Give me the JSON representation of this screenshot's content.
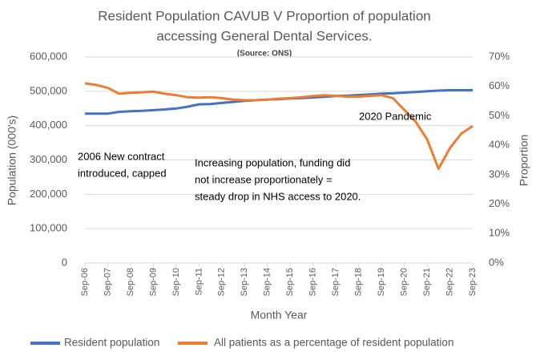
{
  "chart_data": {
    "type": "line",
    "title": [
      "Resident Population CAVUB V Proportion of population",
      "accessing General Dental Services."
    ],
    "subtitle": "(Source: ONS)",
    "x_label": "Month Year",
    "y_label": "Population (000's)",
    "y2_label": "Proportion",
    "annotations": [
      [
        "2006 New contract",
        "introduced, capped"
      ],
      [
        "Increasing population, funding did",
        "not increase proportionately  =",
        "steady drop in NHS access to 2020."
      ],
      [
        "2020  Pandemic"
      ]
    ],
    "categories": [
      "Sep-06",
      null,
      "Sep-07",
      null,
      "Sep-08",
      null,
      "Sep-09",
      null,
      "Sep-10",
      null,
      "Sep-11",
      null,
      "Sep-12",
      null,
      "Sep-13",
      null,
      "Sep-14",
      null,
      "Sep-15",
      null,
      "Sep-16",
      null,
      "Sep-17",
      null,
      "Sep-18",
      null,
      "Sep-19",
      null,
      "Sep-20",
      null,
      "Sep-21",
      null,
      "Sep-22",
      null,
      "Sep-23"
    ],
    "series": [
      {
        "name": "Resident population",
        "color": "#4472c4",
        "values": [
          435000,
          435000,
          435000,
          440000,
          442000,
          443000,
          445000,
          447000,
          450000,
          455000,
          462000,
          463000,
          466000,
          469000,
          472000,
          474000,
          476000,
          477000,
          479000,
          480000,
          482000,
          484000,
          486000,
          487000,
          489000,
          491000,
          493000,
          494000,
          496000,
          498000,
          500000,
          502000,
          503000,
          503000,
          503000
        ]
      },
      {
        "name": "All patients as a percentage of resident population",
        "color": "#ed7d31",
        "axis": "y2",
        "values": [
          61,
          60.5,
          59.5,
          57.5,
          57.8,
          58,
          58.2,
          57.5,
          57,
          56.3,
          56.2,
          56.3,
          56,
          55.5,
          55.3,
          55.3,
          55.5,
          55.8,
          56,
          56.3,
          56.7,
          57,
          56.8,
          56.5,
          56.5,
          56.8,
          57,
          56,
          52,
          48,
          42,
          32,
          39,
          44,
          46.5
        ]
      }
    ],
    "ylim": [
      0,
      600000
    ],
    "yticks": [
      0,
      {
        "value": 100000,
        "label": "100,000"
      },
      {
        "value": 200000,
        "label": "200,000"
      },
      {
        "value": 300000,
        "label": "300,000"
      },
      {
        "value": 400000,
        "label": "400,000"
      },
      {
        "value": 500000,
        "label": "500,000"
      },
      {
        "value": 600000,
        "label": "600,000"
      }
    ],
    "y2lim": [
      0,
      70
    ],
    "y2ticks": [
      {
        "value": 0,
        "label": "0%"
      },
      {
        "value": 10,
        "label": "10%"
      },
      {
        "value": 20,
        "label": "20%"
      },
      {
        "value": 30,
        "label": "30%"
      },
      {
        "value": 40,
        "label": "40%"
      },
      {
        "value": 50,
        "label": "50%"
      },
      {
        "value": 60,
        "label": "60%"
      },
      {
        "value": 70,
        "label": "70%"
      }
    ],
    "grid": true,
    "legend": "bottom"
  }
}
